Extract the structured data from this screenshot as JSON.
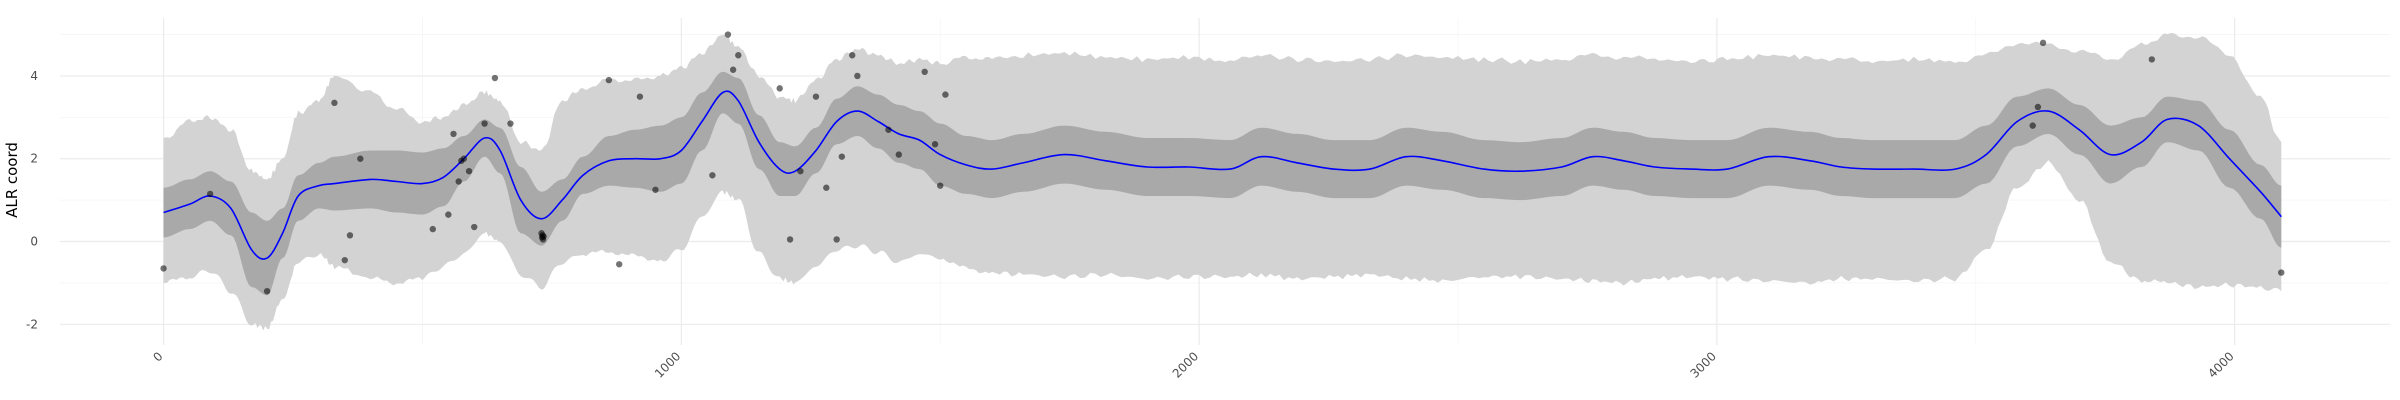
{
  "chart_data": {
    "type": "line",
    "xlabel": "",
    "ylabel": "ALR coord",
    "xlim": [
      -200,
      4300
    ],
    "ylim": [
      -2.5,
      5.4
    ],
    "x_ticks": [
      0,
      1000,
      2000,
      3000,
      4000
    ],
    "x_tick_labels": [
      "0",
      "1000",
      "2000",
      "3000",
      "4000"
    ],
    "y_ticks": [
      -2,
      0,
      2,
      4
    ],
    "y_tick_labels": [
      "-2",
      "0",
      "2",
      "4"
    ],
    "x_minor_ticks": [
      500,
      1500,
      2500,
      3500
    ],
    "y_minor_ticks": [
      -1,
      1,
      3,
      5
    ],
    "grid": true,
    "colors": {
      "mean_line": "#0000ff",
      "inner_band": "#a9a9a9",
      "outer_band": "#d3d3d3",
      "points": "#000000"
    },
    "mean": {
      "x": [
        0,
        50,
        90,
        130,
        170,
        200,
        230,
        260,
        300,
        330,
        400,
        450,
        500,
        540,
        580,
        620,
        650,
        690,
        730,
        770,
        810,
        860,
        910,
        960,
        1000,
        1040,
        1080,
        1110,
        1150,
        1190,
        1220,
        1260,
        1300,
        1340,
        1380,
        1420,
        1460,
        1500,
        1550,
        1600,
        1660,
        1740,
        1820,
        1900,
        1980,
        2060,
        2120,
        2190,
        2260,
        2330,
        2400,
        2470,
        2550,
        2620,
        2700,
        2760,
        2820,
        2880,
        2950,
        3020,
        3100,
        3180,
        3240,
        3300,
        3380,
        3460,
        3520,
        3580,
        3640,
        3700,
        3760,
        3820,
        3870,
        3930,
        3990,
        4050,
        4090
      ],
      "y": [
        0.7,
        0.9,
        1.1,
        0.8,
        -0.2,
        -0.4,
        0.2,
        1.1,
        1.35,
        1.4,
        1.5,
        1.45,
        1.4,
        1.55,
        2.0,
        2.5,
        2.2,
        1.0,
        0.55,
        1.0,
        1.6,
        1.95,
        2.0,
        2.0,
        2.2,
        2.9,
        3.6,
        3.4,
        2.4,
        1.75,
        1.7,
        2.2,
        2.9,
        3.15,
        2.9,
        2.6,
        2.45,
        2.1,
        1.85,
        1.75,
        1.9,
        2.1,
        1.95,
        1.8,
        1.8,
        1.75,
        2.05,
        1.9,
        1.75,
        1.75,
        2.05,
        1.95,
        1.75,
        1.7,
        1.8,
        2.05,
        1.95,
        1.8,
        1.75,
        1.75,
        2.05,
        1.95,
        1.8,
        1.75,
        1.75,
        1.75,
        2.1,
        2.9,
        3.15,
        2.7,
        2.1,
        2.4,
        2.95,
        2.8,
        2.0,
        1.2,
        0.6
      ]
    },
    "inner_band": {
      "upper": [
        1.3,
        1.5,
        1.7,
        1.45,
        0.7,
        0.5,
        0.8,
        1.6,
        1.9,
        2.05,
        2.2,
        2.2,
        2.15,
        2.25,
        2.55,
        2.95,
        2.75,
        1.8,
        1.2,
        1.5,
        2.05,
        2.55,
        2.7,
        2.8,
        3.0,
        3.6,
        4.1,
        3.95,
        3.05,
        2.4,
        2.3,
        2.75,
        3.45,
        3.75,
        3.55,
        3.3,
        3.15,
        2.85,
        2.55,
        2.45,
        2.6,
        2.8,
        2.65,
        2.5,
        2.5,
        2.45,
        2.75,
        2.6,
        2.45,
        2.45,
        2.75,
        2.65,
        2.45,
        2.4,
        2.5,
        2.75,
        2.65,
        2.5,
        2.45,
        2.45,
        2.75,
        2.65,
        2.5,
        2.45,
        2.45,
        2.45,
        2.8,
        3.5,
        3.7,
        3.3,
        2.8,
        3.0,
        3.5,
        3.4,
        2.7,
        1.85,
        1.35
      ],
      "lower": [
        0.1,
        0.3,
        0.5,
        0.15,
        -1.1,
        -1.3,
        -0.4,
        0.5,
        0.8,
        0.75,
        0.8,
        0.7,
        0.65,
        0.85,
        1.45,
        2.05,
        1.65,
        0.2,
        -0.1,
        0.5,
        1.15,
        1.35,
        1.3,
        1.2,
        1.4,
        2.2,
        3.1,
        2.85,
        1.75,
        1.1,
        1.1,
        1.65,
        2.35,
        2.55,
        2.25,
        1.9,
        1.75,
        1.35,
        1.15,
        1.05,
        1.2,
        1.4,
        1.25,
        1.1,
        1.1,
        1.05,
        1.35,
        1.2,
        1.05,
        1.05,
        1.35,
        1.25,
        1.05,
        1.0,
        1.1,
        1.35,
        1.25,
        1.1,
        1.05,
        1.05,
        1.35,
        1.25,
        1.1,
        1.05,
        1.05,
        1.05,
        1.4,
        2.3,
        2.6,
        2.1,
        1.4,
        1.8,
        2.4,
        2.2,
        1.3,
        0.55,
        -0.15
      ]
    },
    "outer_band": {
      "upper": [
        2.5,
        2.9,
        3.0,
        2.7,
        1.7,
        1.5,
        2.0,
        3.1,
        3.4,
        4.0,
        3.6,
        3.2,
        2.9,
        3.0,
        3.3,
        3.6,
        3.4,
        2.4,
        2.2,
        3.4,
        3.7,
        3.9,
        3.9,
        4.0,
        4.2,
        4.55,
        5.0,
        4.7,
        4.0,
        3.5,
        3.4,
        3.9,
        4.4,
        4.65,
        4.5,
        4.3,
        4.4,
        4.3,
        4.45,
        4.4,
        4.5,
        4.55,
        4.45,
        4.4,
        4.45,
        4.35,
        4.5,
        4.4,
        4.35,
        4.4,
        4.5,
        4.45,
        4.4,
        4.35,
        4.4,
        4.5,
        4.45,
        4.4,
        4.35,
        4.4,
        4.5,
        4.45,
        4.4,
        4.35,
        4.4,
        4.35,
        4.5,
        4.8,
        4.75,
        4.6,
        4.4,
        4.75,
        5.0,
        4.95,
        4.5,
        3.5,
        2.4
      ],
      "lower": [
        -1.0,
        -0.85,
        -0.7,
        -1.2,
        -2.0,
        -2.1,
        -1.4,
        -0.5,
        -0.3,
        -0.6,
        -0.9,
        -1.0,
        -0.9,
        -0.6,
        -0.3,
        0.2,
        0.0,
        -0.8,
        -1.1,
        -0.5,
        -0.3,
        -0.25,
        -0.35,
        -0.45,
        -0.2,
        0.6,
        1.2,
        1.0,
        -0.3,
        -0.9,
        -1.0,
        -0.6,
        -0.2,
        -0.1,
        -0.25,
        -0.5,
        -0.3,
        -0.4,
        -0.65,
        -0.75,
        -0.8,
        -0.85,
        -0.8,
        -0.9,
        -0.85,
        -0.85,
        -0.8,
        -0.9,
        -0.85,
        -0.8,
        -0.9,
        -0.95,
        -0.85,
        -0.85,
        -0.9,
        -0.95,
        -1.0,
        -0.9,
        -0.85,
        -0.9,
        -0.95,
        -1.0,
        -0.9,
        -0.9,
        -0.95,
        -0.9,
        -0.2,
        1.3,
        1.9,
        1.0,
        -0.5,
        -0.95,
        -1.0,
        -1.1,
        -1.05,
        -1.1,
        -1.2
      ]
    },
    "points": {
      "x": [
        0,
        90,
        200,
        330,
        350,
        360,
        380,
        520,
        550,
        560,
        570,
        575,
        580,
        590,
        600,
        620,
        640,
        670,
        730,
        731,
        732,
        733,
        734,
        860,
        880,
        920,
        950,
        1060,
        1090,
        1100,
        1110,
        1190,
        1210,
        1230,
        1260,
        1280,
        1300,
        1310,
        1330,
        1340,
        1400,
        1420,
        1470,
        1490,
        1500,
        1510,
        3610,
        3620,
        3630,
        3840,
        4090
      ],
      "y": [
        -0.65,
        1.15,
        -1.2,
        3.35,
        -0.45,
        0.15,
        2.0,
        0.3,
        0.65,
        2.6,
        1.45,
        1.95,
        2.0,
        1.7,
        0.35,
        2.85,
        3.95,
        2.85,
        0.2,
        0.1,
        0.15,
        0.05,
        0.12,
        3.9,
        -0.55,
        3.5,
        1.25,
        1.6,
        5.0,
        4.15,
        4.5,
        3.7,
        0.05,
        1.7,
        3.5,
        1.3,
        0.05,
        2.05,
        4.5,
        4.0,
        2.7,
        2.1,
        4.1,
        2.35,
        1.35,
        3.55,
        2.8,
        3.25,
        4.8,
        4.4,
        -0.75
      ]
    }
  }
}
